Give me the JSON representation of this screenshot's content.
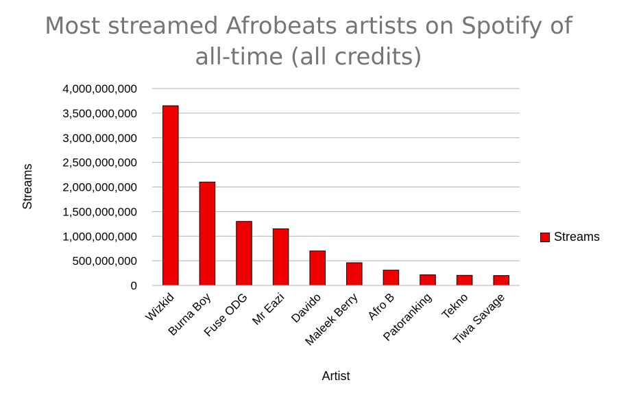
{
  "chart_data": {
    "type": "bar",
    "title": "Most streamed Afrobeats artists on Spotify of all-time (all credits)",
    "title_lines": [
      "Most streamed Afrobeats artists on Spotify of",
      "all-time (all credits)"
    ],
    "xlabel": "Artist",
    "ylabel": "Streams",
    "categories": [
      "Wizkid",
      "Burna Boy",
      "Fuse ODG",
      "Mr Eazi",
      "Davido",
      "Maleek Berry",
      "Afro B",
      "Patoranking",
      "Tekno",
      "Tiwa Savage"
    ],
    "series": [
      {
        "name": "Streams",
        "color": "#ee0000",
        "values": [
          3650000000,
          2100000000,
          1300000000,
          1150000000,
          700000000,
          460000000,
          310000000,
          215000000,
          205000000,
          200000000
        ]
      }
    ],
    "ylim": [
      0,
      4000000000
    ],
    "yticks": [
      0,
      500000000,
      1000000000,
      1500000000,
      2000000000,
      2500000000,
      3000000000,
      3500000000,
      4000000000
    ],
    "ytick_labels": [
      "0",
      "500,000,000",
      "1,000,000,000",
      "1,500,000,000",
      "2,000,000,000",
      "2,500,000,000",
      "3,000,000,000",
      "3,500,000,000",
      "4,000,000,000"
    ],
    "grid": true,
    "legend_position": "right"
  }
}
